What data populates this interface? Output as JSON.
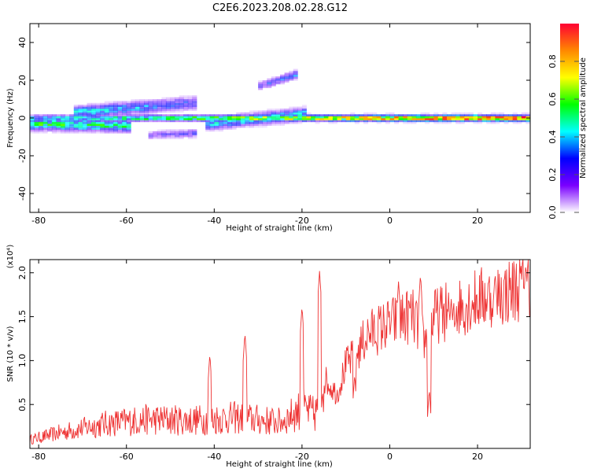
{
  "figure": {
    "title": "C2E6.2023.208.02.28.G12"
  },
  "chart_data": [
    {
      "type": "heatmap",
      "xlabel": "Height of straight line (km)",
      "ylabel": "Frequency (Hz)",
      "xlim": [
        -82,
        32
      ],
      "ylim": [
        -50,
        50
      ],
      "xticks": [
        -80,
        -60,
        -40,
        -20,
        0,
        20
      ],
      "yticks": [
        -40,
        -20,
        0,
        20,
        40
      ],
      "colorbar": {
        "label": "Normalized spectral amplitude",
        "range": [
          0.0,
          1.0
        ],
        "ticks": [
          "0.0",
          "0.2",
          "0.4",
          "0.6",
          "0.8"
        ],
        "colors": [
          "#ffffff",
          "#7a00ff",
          "#0000ff",
          "#00ffff",
          "#00ff00",
          "#ffff00",
          "#ff8800",
          "#ff0033"
        ]
      },
      "components": [
        {
          "x": [
            -82,
            32
          ],
          "freq": [
            0,
            0
          ],
          "spread_hz": 1.5,
          "amp_start": 0.4,
          "amp_end": 1.0
        },
        {
          "x": [
            -82,
            -60
          ],
          "freq": [
            -3,
            -4
          ],
          "spread_hz": 3,
          "amp_start": 0.55,
          "amp_end": 0.5
        },
        {
          "x": [
            -72,
            -45
          ],
          "freq": [
            3,
            8
          ],
          "spread_hz": 3,
          "amp_start": 0.45,
          "amp_end": 0.3
        },
        {
          "x": [
            -30,
            -22
          ],
          "freq": [
            17,
            23
          ],
          "spread_hz": 2,
          "amp_start": 0.25,
          "amp_end": 0.35
        },
        {
          "x": [
            -55,
            -45
          ],
          "freq": [
            -9,
            -8
          ],
          "spread_hz": 2,
          "amp_start": 0.2,
          "amp_end": 0.25
        },
        {
          "x": [
            -42,
            -20
          ],
          "freq": [
            -3,
            2
          ],
          "spread_hz": 3,
          "amp_start": 0.4,
          "amp_end": 0.45
        }
      ]
    },
    {
      "type": "line",
      "xlabel": "Height of straight line (km)",
      "ylabel": "SNR (10 * v/v)",
      "y_multiplier": "(x10⁴)",
      "xlim": [
        -82,
        32
      ],
      "ylim": [
        0,
        2.15
      ],
      "xticks": [
        -80,
        -60,
        -40,
        -20,
        0,
        20
      ],
      "yticks": [
        "0.5",
        "1.0",
        "1.5",
        "2.0"
      ],
      "color": "#ee3333",
      "envelope": {
        "x": [
          -82,
          -75,
          -65,
          -55,
          -45,
          -35,
          -25,
          -20,
          -17,
          -15,
          -12,
          -10,
          -8,
          -5,
          0,
          5,
          8,
          10,
          15,
          20,
          25,
          30,
          32
        ],
        "y": [
          0.1,
          0.18,
          0.28,
          0.33,
          0.32,
          0.35,
          0.3,
          0.45,
          0.38,
          0.8,
          0.62,
          0.95,
          1.05,
          1.3,
          1.42,
          1.52,
          1.22,
          1.5,
          1.6,
          1.7,
          1.75,
          1.85,
          1.92
        ]
      },
      "spikes": [
        {
          "x": -33,
          "y": 1.32
        },
        {
          "x": -41,
          "y": 1.08
        },
        {
          "x": -16,
          "y": 2.02
        },
        {
          "x": -20,
          "y": 1.62
        },
        {
          "x": 2,
          "y": 1.9
        },
        {
          "x": 7,
          "y": 1.98
        },
        {
          "x": 9,
          "y": 0.68
        },
        {
          "x": -8,
          "y": 0.85
        },
        {
          "x": 24,
          "y": 2.0
        },
        {
          "x": 31,
          "y": 2.1
        },
        {
          "x": 14,
          "y": 1.7
        }
      ]
    }
  ]
}
